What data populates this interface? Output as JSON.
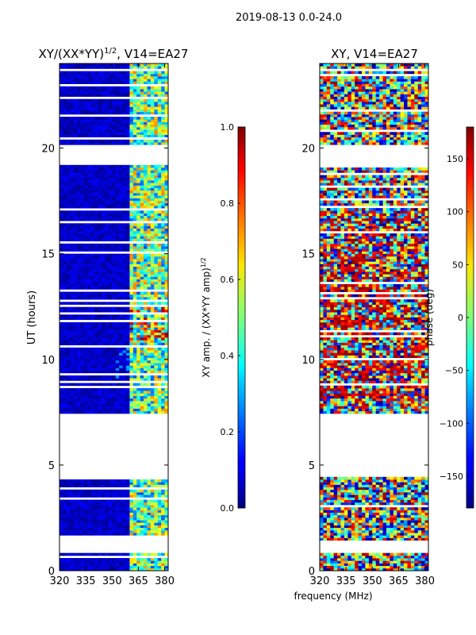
{
  "figure": {
    "suptitle": "2019-08-13 0.0-24.0",
    "xlabel_shared": "frequency (MHz)"
  },
  "chart_data": [
    {
      "type": "heatmap",
      "title_main": "XY/(XX*YY)",
      "title_sup": "1/2",
      "title_rest": ", V14=EA27",
      "ylabel": "UT (hours)",
      "xlim": [
        320,
        382
      ],
      "ylim": [
        0,
        24
      ],
      "xticks": [
        "320",
        "335",
        "350",
        "365",
        "380"
      ],
      "yticks": [
        "0",
        "5",
        "10",
        "15",
        "20"
      ],
      "colorbar": {
        "label": "XY amp. / (XX*YY amp)",
        "label_sup": "1/2",
        "range": [
          0.0,
          1.0
        ],
        "ticks": [
          "0.0",
          "0.2",
          "0.4",
          "0.6",
          "0.8",
          "1.0"
        ],
        "colormap": "jet"
      },
      "bright_band_mhz": [
        360,
        381
      ],
      "data_gaps_hours": [
        [
          0.75,
          1.35
        ],
        [
          4.35,
          7.35
        ],
        [
          19.1,
          20.05
        ]
      ]
    },
    {
      "type": "heatmap",
      "title": "XY, V14=EA27",
      "ylabel": "",
      "xlim": [
        320,
        382
      ],
      "ylim": [
        0,
        24
      ],
      "xticks": [
        "320",
        "335",
        "350",
        "365",
        "380"
      ],
      "yticks": [
        "0",
        "5",
        "10",
        "15",
        "20"
      ],
      "colorbar": {
        "label": "phase (deg)",
        "range": [
          -180,
          180
        ],
        "ticks": [
          "−150",
          "−100",
          "−50",
          "0",
          "50",
          "100",
          "150"
        ],
        "colormap": "jet"
      },
      "data_gaps_hours": [
        [
          0.75,
          1.35
        ],
        [
          4.35,
          7.35
        ],
        [
          19.1,
          20.05
        ]
      ]
    }
  ],
  "colors": {
    "jet_dark_blue": "#00007f",
    "jet_cyan": "#00ffff",
    "jet_yellow": "#ffff00",
    "jet_dark_red": "#7f0000"
  }
}
